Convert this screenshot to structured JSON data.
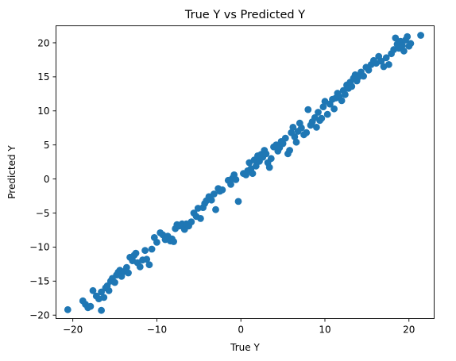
{
  "chart_data": {
    "type": "scatter",
    "title": "True Y vs Predicted Y",
    "xlabel": "True Y",
    "ylabel": "Predicted Y",
    "xlim": [
      -22.0,
      23.0
    ],
    "ylim": [
      -20.5,
      22.5
    ],
    "x_ticks": [
      {
        "value": -20,
        "label": "−20"
      },
      {
        "value": -10,
        "label": "−10"
      },
      {
        "value": 0,
        "label": "0"
      },
      {
        "value": 10,
        "label": "10"
      },
      {
        "value": 20,
        "label": "20"
      }
    ],
    "y_ticks": [
      {
        "value": -20,
        "label": "−20"
      },
      {
        "value": -15,
        "label": "−15"
      },
      {
        "value": -10,
        "label": "−10"
      },
      {
        "value": -5,
        "label": "−5"
      },
      {
        "value": 0,
        "label": "0"
      },
      {
        "value": 5,
        "label": "5"
      },
      {
        "value": 10,
        "label": "10"
      },
      {
        "value": 15,
        "label": "15"
      },
      {
        "value": 20,
        "label": "20"
      }
    ],
    "grid": false,
    "marker_color": "#1f77b4",
    "series": [
      {
        "points": [
          [
            -20.6,
            -19.2
          ],
          [
            -18.8,
            -17.9
          ],
          [
            -18.5,
            -18.4
          ],
          [
            -18.2,
            -18.9
          ],
          [
            -17.9,
            -18.7
          ],
          [
            -17.6,
            -16.4
          ],
          [
            -17.2,
            -17.2
          ],
          [
            -16.9,
            -17.6
          ],
          [
            -16.6,
            -16.6
          ],
          [
            -16.3,
            -17.4
          ],
          [
            -16.6,
            -19.3
          ],
          [
            -16.1,
            -16.0
          ],
          [
            -15.9,
            -15.7
          ],
          [
            -15.7,
            -16.4
          ],
          [
            -15.5,
            -15.0
          ],
          [
            -15.3,
            -14.6
          ],
          [
            -15.0,
            -15.2
          ],
          [
            -14.8,
            -14.1
          ],
          [
            -14.6,
            -13.7
          ],
          [
            -14.4,
            -13.4
          ],
          [
            -14.2,
            -14.3
          ],
          [
            -13.9,
            -13.6
          ],
          [
            -13.6,
            -13.0
          ],
          [
            -13.4,
            -13.8
          ],
          [
            -13.2,
            -11.5
          ],
          [
            -12.9,
            -12.0
          ],
          [
            -12.7,
            -11.2
          ],
          [
            -12.5,
            -10.9
          ],
          [
            -12.3,
            -12.3
          ],
          [
            -12.0,
            -12.9
          ],
          [
            -11.7,
            -11.9
          ],
          [
            -11.4,
            -10.5
          ],
          [
            -11.2,
            -11.8
          ],
          [
            -10.9,
            -12.6
          ],
          [
            -10.6,
            -10.3
          ],
          [
            -10.3,
            -8.6
          ],
          [
            -10.0,
            -9.3
          ],
          [
            -9.6,
            -7.9
          ],
          [
            -9.3,
            -8.2
          ],
          [
            -9.0,
            -8.9
          ],
          [
            -8.7,
            -8.4
          ],
          [
            -8.4,
            -9.1
          ],
          [
            -8.2,
            -8.8
          ],
          [
            -8.0,
            -9.2
          ],
          [
            -7.8,
            -7.3
          ],
          [
            -7.6,
            -6.7
          ],
          [
            -7.3,
            -6.9
          ],
          [
            -7.0,
            -6.6
          ],
          [
            -6.7,
            -7.4
          ],
          [
            -6.5,
            -6.6
          ],
          [
            -6.2,
            -6.9
          ],
          [
            -5.9,
            -6.3
          ],
          [
            -5.6,
            -5.0
          ],
          [
            -5.3,
            -5.5
          ],
          [
            -5.1,
            -4.3
          ],
          [
            -4.8,
            -5.8
          ],
          [
            -4.5,
            -4.2
          ],
          [
            -4.3,
            -3.6
          ],
          [
            -4.1,
            -3.2
          ],
          [
            -3.8,
            -2.6
          ],
          [
            -3.5,
            -3.1
          ],
          [
            -3.2,
            -2.2
          ],
          [
            -3.0,
            -4.5
          ],
          [
            -2.7,
            -1.4
          ],
          [
            -2.5,
            -1.8
          ],
          [
            -2.2,
            -1.6
          ],
          [
            -1.5,
            -0.2
          ],
          [
            -1.2,
            -0.8
          ],
          [
            -1.0,
            0.1
          ],
          [
            -0.8,
            0.6
          ],
          [
            -0.6,
            -0.1
          ],
          [
            -0.3,
            -3.3
          ],
          [
            0.3,
            0.8
          ],
          [
            0.6,
            0.6
          ],
          [
            0.8,
            1.2
          ],
          [
            1.0,
            2.4
          ],
          [
            1.2,
            1.5
          ],
          [
            1.4,
            0.8
          ],
          [
            1.6,
            2.8
          ],
          [
            1.8,
            1.9
          ],
          [
            2.0,
            3.4
          ],
          [
            2.2,
            2.6
          ],
          [
            2.4,
            3.6
          ],
          [
            2.6,
            3.2
          ],
          [
            2.8,
            4.2
          ],
          [
            3.0,
            3.7
          ],
          [
            3.2,
            2.4
          ],
          [
            3.4,
            1.7
          ],
          [
            3.6,
            3.0
          ],
          [
            3.9,
            4.7
          ],
          [
            4.2,
            5.0
          ],
          [
            4.4,
            4.1
          ],
          [
            4.6,
            4.6
          ],
          [
            4.8,
            5.5
          ],
          [
            5.0,
            5.2
          ],
          [
            5.3,
            6.0
          ],
          [
            5.6,
            3.7
          ],
          [
            5.8,
            4.2
          ],
          [
            6.0,
            6.8
          ],
          [
            6.2,
            7.6
          ],
          [
            6.4,
            6.2
          ],
          [
            6.6,
            5.4
          ],
          [
            6.8,
            7.0
          ],
          [
            7.0,
            8.2
          ],
          [
            7.2,
            7.5
          ],
          [
            7.5,
            6.5
          ],
          [
            7.8,
            6.8
          ],
          [
            8.0,
            10.2
          ],
          [
            8.3,
            7.9
          ],
          [
            8.5,
            8.4
          ],
          [
            8.8,
            9.0
          ],
          [
            9.0,
            7.6
          ],
          [
            9.2,
            9.8
          ],
          [
            9.4,
            8.6
          ],
          [
            9.6,
            8.9
          ],
          [
            9.8,
            10.6
          ],
          [
            10.0,
            11.4
          ],
          [
            10.3,
            9.5
          ],
          [
            10.6,
            11.0
          ],
          [
            10.9,
            11.7
          ],
          [
            11.1,
            10.3
          ],
          [
            11.3,
            11.9
          ],
          [
            11.5,
            12.6
          ],
          [
            11.7,
            12.1
          ],
          [
            12.0,
            11.5
          ],
          [
            12.2,
            13.0
          ],
          [
            12.4,
            12.4
          ],
          [
            12.6,
            13.8
          ],
          [
            12.8,
            13.3
          ],
          [
            13.0,
            14.2
          ],
          [
            13.2,
            13.6
          ],
          [
            13.4,
            14.8
          ],
          [
            13.6,
            15.3
          ],
          [
            13.8,
            14.4
          ],
          [
            14.0,
            15.0
          ],
          [
            14.3,
            15.7
          ],
          [
            14.6,
            15.1
          ],
          [
            14.9,
            16.4
          ],
          [
            15.2,
            16.0
          ],
          [
            15.5,
            16.8
          ],
          [
            15.8,
            17.4
          ],
          [
            16.1,
            17.0
          ],
          [
            16.4,
            18.0
          ],
          [
            16.7,
            17.3
          ],
          [
            17.0,
            16.5
          ],
          [
            17.3,
            17.8
          ],
          [
            17.6,
            16.8
          ],
          [
            17.9,
            18.4
          ],
          [
            18.2,
            19.0
          ],
          [
            18.4,
            20.7
          ],
          [
            18.6,
            19.8
          ],
          [
            18.8,
            19.2
          ],
          [
            19.0,
            20.2
          ],
          [
            19.2,
            19.6
          ],
          [
            19.4,
            18.8
          ],
          [
            19.6,
            20.4
          ],
          [
            19.8,
            20.9
          ],
          [
            20.0,
            19.5
          ],
          [
            20.2,
            19.9
          ],
          [
            21.4,
            21.1
          ]
        ]
      }
    ]
  }
}
